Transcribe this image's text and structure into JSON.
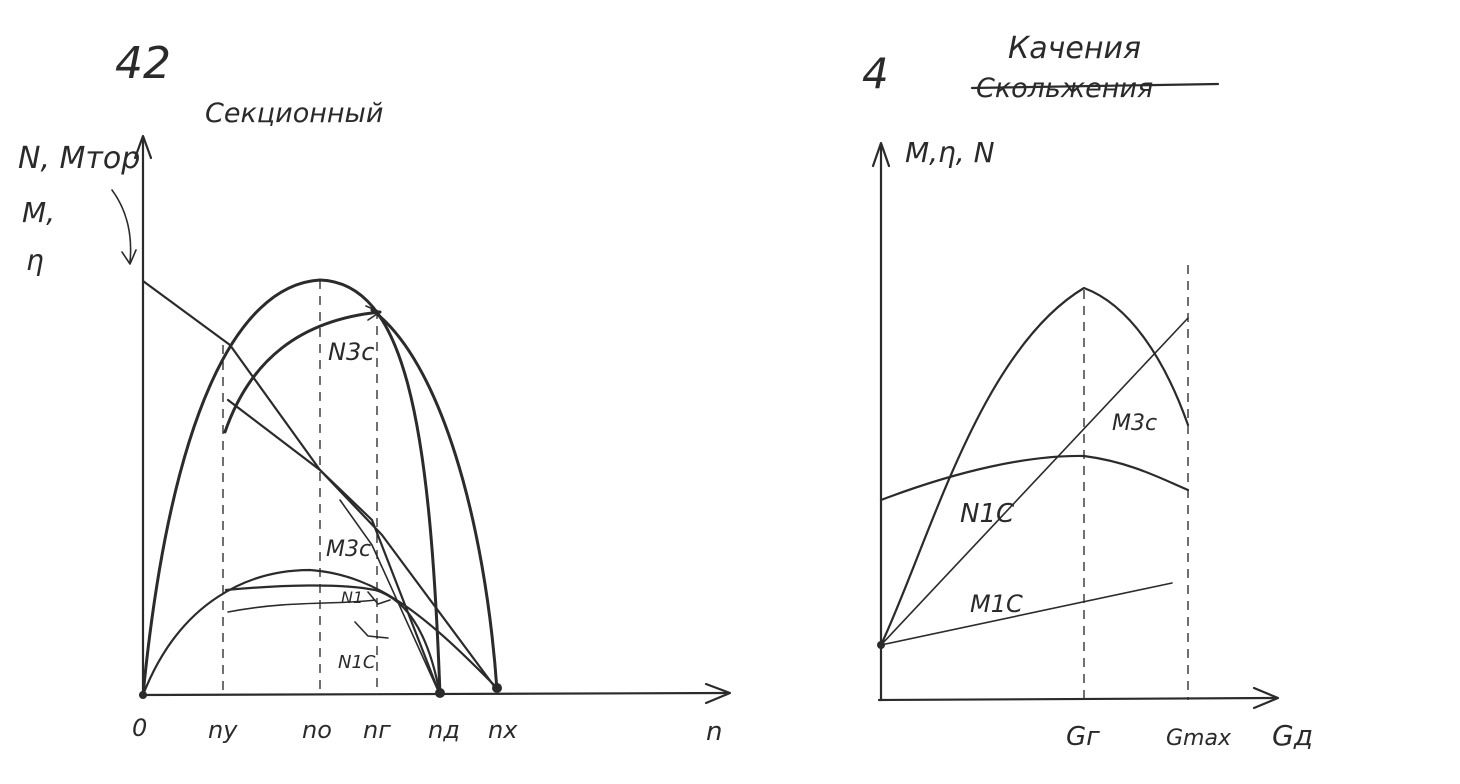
{
  "left": {
    "number": "42",
    "caption": "Секционный",
    "y_label_line1": "N, Mтор",
    "y_label_line2": "M,",
    "y_label_line3": "η",
    "x_label": "n",
    "ticks": [
      "0",
      "nу",
      "no",
      "nг",
      "nд",
      "nх"
    ],
    "curves": [
      "N3c",
      "M3c",
      "N1",
      "N1C"
    ]
  },
  "right": {
    "number": "4",
    "caption_top": "Качения",
    "caption_struck": "Скольжения",
    "y_label": "M,η, N",
    "x_label": "Gд",
    "ticks": [
      "Gг",
      "Gmax"
    ],
    "curves": [
      "M3c",
      "N1C",
      "M1C"
    ]
  }
}
